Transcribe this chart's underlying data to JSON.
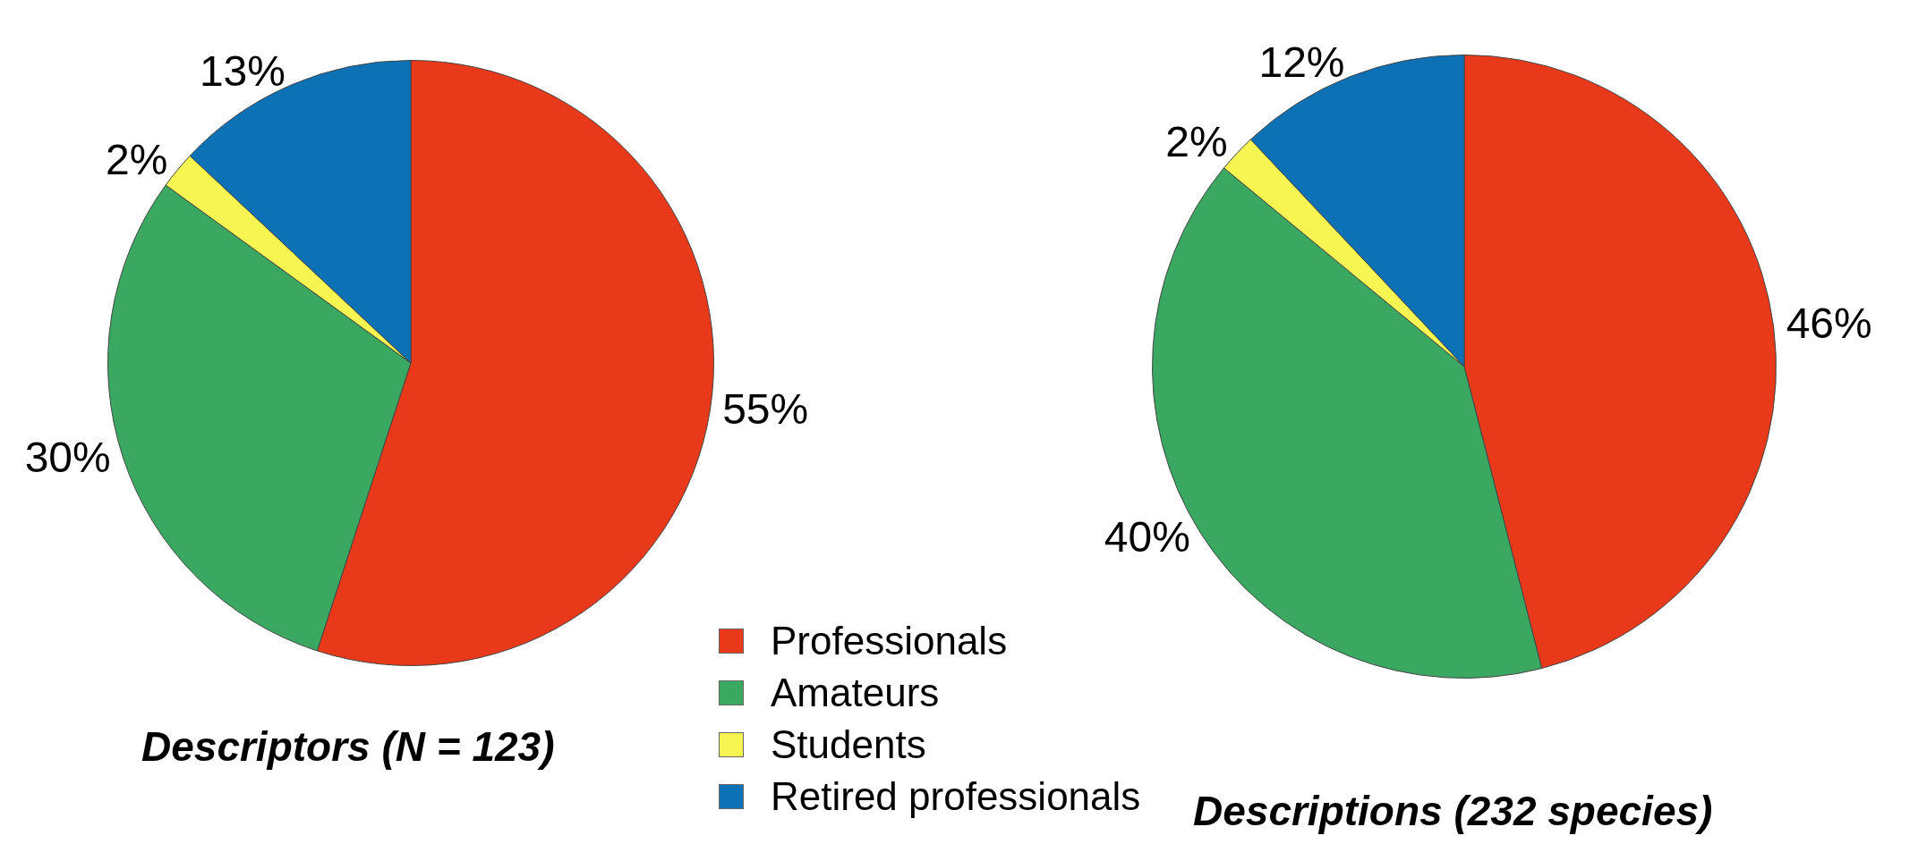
{
  "chart_data": [
    {
      "type": "pie",
      "title": "Descriptors (N = 123)",
      "categories": [
        "Professionals",
        "Amateurs",
        "Students",
        "Retired professionals"
      ],
      "values": [
        55,
        30,
        2,
        13
      ],
      "value_labels": [
        "55%",
        "30%",
        "2%",
        "13%"
      ],
      "colors": [
        "#e83a1a",
        "#3ba862",
        "#f7f552",
        "#0c72b5"
      ],
      "legend": "right"
    },
    {
      "type": "pie",
      "title": "Descriptions (232 species)",
      "categories": [
        null,
        null,
        null,
        null
      ],
      "values": [
        46,
        40,
        2,
        12
      ],
      "value_labels": [
        "46%",
        "40%",
        "2%",
        "12%"
      ],
      "colors": [
        "#e83a1a",
        "#3ba862",
        "#f7f552",
        "#0c72b5"
      ]
    }
  ]
}
